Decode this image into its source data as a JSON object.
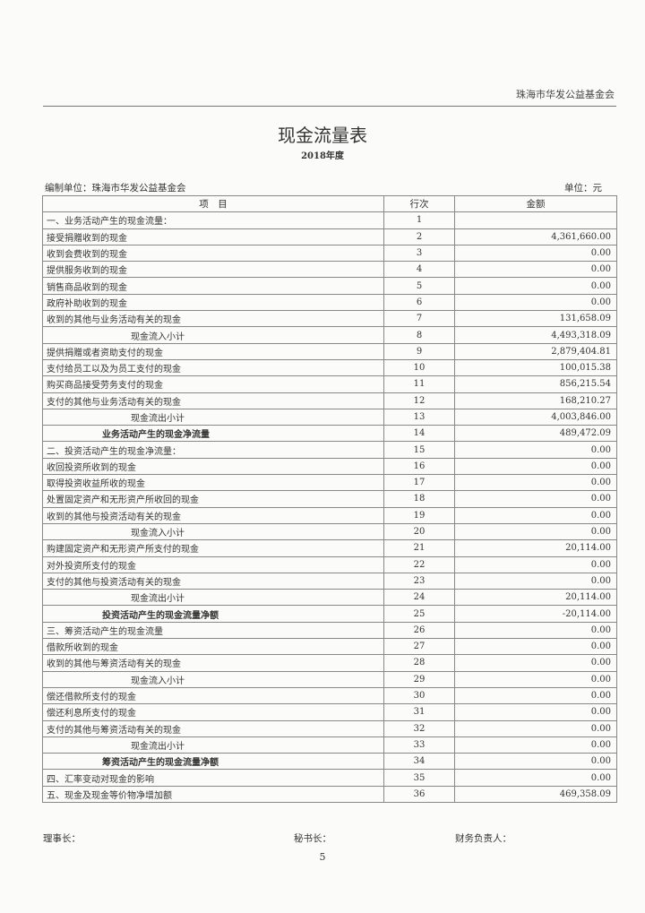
{
  "header": {
    "org": "珠海市华发公益基金会",
    "title": "现金流量表",
    "period": "2018年度",
    "compiler": "编制单位：珠海市华发公益基金会",
    "unit": "单位：元"
  },
  "table": {
    "columns": [
      "项　目",
      "行次",
      "金额"
    ],
    "rows": [
      {
        "item": "一、业务活动产生的现金流量：",
        "line": "1",
        "amount": "",
        "style": "normal"
      },
      {
        "item": "接受捐赠收到的现金",
        "line": "2",
        "amount": "4,361,660.00",
        "style": "normal"
      },
      {
        "item": "收到会费收到的现金",
        "line": "3",
        "amount": "0.00",
        "style": "normal"
      },
      {
        "item": "提供服务收到的现金",
        "line": "4",
        "amount": "0.00",
        "style": "normal"
      },
      {
        "item": "销售商品收到的现金",
        "line": "5",
        "amount": "0.00",
        "style": "normal"
      },
      {
        "item": "政府补助收到的现金",
        "line": "6",
        "amount": "0.00",
        "style": "normal"
      },
      {
        "item": "收到的其他与业务活动有关的现金",
        "line": "7",
        "amount": "131,658.09",
        "style": "normal"
      },
      {
        "item": "现金流入小计",
        "line": "8",
        "amount": "4,493,318.09",
        "style": "sub"
      },
      {
        "item": "提供捐赠或者资助支付的现金",
        "line": "9",
        "amount": "2,879,404.81",
        "style": "normal"
      },
      {
        "item": "支付给员工以及为员工支付的现金",
        "line": "10",
        "amount": "100,015.38",
        "style": "normal"
      },
      {
        "item": "购买商品接受劳务支付的现金",
        "line": "11",
        "amount": "856,215.54",
        "style": "normal"
      },
      {
        "item": "支付的其他与业务活动有关的现金",
        "line": "12",
        "amount": "168,210.27",
        "style": "normal"
      },
      {
        "item": "现金流出小计",
        "line": "13",
        "amount": "4,003,846.00",
        "style": "sub"
      },
      {
        "item": "业务活动产生的现金净流量",
        "line": "14",
        "amount": "489,472.09",
        "style": "net"
      },
      {
        "item": "二、投资活动产生的现金净流量：",
        "line": "15",
        "amount": "0.00",
        "style": "normal"
      },
      {
        "item": "收回投资所收到的现金",
        "line": "16",
        "amount": "0.00",
        "style": "normal"
      },
      {
        "item": "取得投资收益所收的现金",
        "line": "17",
        "amount": "0.00",
        "style": "normal"
      },
      {
        "item": "处置固定资产和无形资产所收回的现金",
        "line": "18",
        "amount": "0.00",
        "style": "normal"
      },
      {
        "item": "收到的其他与投资活动有关的现金",
        "line": "19",
        "amount": "0.00",
        "style": "normal"
      },
      {
        "item": "现金流入小计",
        "line": "20",
        "amount": "0.00",
        "style": "sub"
      },
      {
        "item": "购建固定资产和无形资产所支付的现金",
        "line": "21",
        "amount": "20,114.00",
        "style": "normal"
      },
      {
        "item": "对外投资所支付的现金",
        "line": "22",
        "amount": "0.00",
        "style": "normal"
      },
      {
        "item": "支付的其他与投资活动有关的现金",
        "line": "23",
        "amount": "0.00",
        "style": "normal"
      },
      {
        "item": "现金流出小计",
        "line": "24",
        "amount": "20,114.00",
        "style": "sub"
      },
      {
        "item": "投资活动产生的现金流量净额",
        "line": "25",
        "amount": "-20,114.00",
        "style": "net"
      },
      {
        "item": "三、筹资活动产生的现金流量",
        "line": "26",
        "amount": "0.00",
        "style": "normal"
      },
      {
        "item": "借款所收到的现金",
        "line": "27",
        "amount": "0.00",
        "style": "normal"
      },
      {
        "item": "收到的其他与筹资活动有关的现金",
        "line": "28",
        "amount": "0.00",
        "style": "normal"
      },
      {
        "item": "现金流入小计",
        "line": "29",
        "amount": "0.00",
        "style": "sub"
      },
      {
        "item": "偿还借款所支付的现金",
        "line": "30",
        "amount": "0.00",
        "style": "normal"
      },
      {
        "item": "偿还利息所支付的现金",
        "line": "31",
        "amount": "0.00",
        "style": "normal"
      },
      {
        "item": "支付的其他与筹资活动有关的现金",
        "line": "32",
        "amount": "0.00",
        "style": "normal"
      },
      {
        "item": "现金流出小计",
        "line": "33",
        "amount": "0.00",
        "style": "sub"
      },
      {
        "item": "筹资活动产生的现金流量净额",
        "line": "34",
        "amount": "0.00",
        "style": "net"
      },
      {
        "item": "四、汇率变动对现金的影响",
        "line": "35",
        "amount": "0.00",
        "style": "normal"
      },
      {
        "item": "五、现金及现金等价物净增加额",
        "line": "36",
        "amount": "469,358.09",
        "style": "normal"
      }
    ]
  },
  "footer": {
    "chairman": "理事长：",
    "secretary": "秘书长：",
    "finance": "财务负责人：",
    "page": "5"
  }
}
